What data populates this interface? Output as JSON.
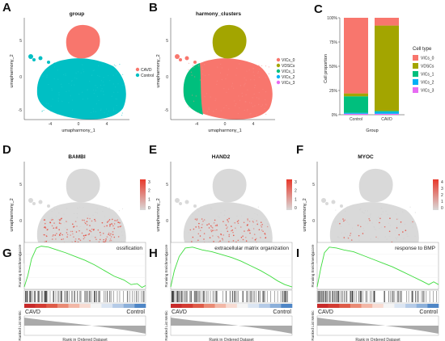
{
  "panels": {
    "A": {
      "letter": "A",
      "title": "group",
      "xlabel": "umapharmony_1",
      "ylabel": "umapharmony_2",
      "x_ticks": [
        "-4",
        "0",
        "4"
      ],
      "y_ticks": [
        "5",
        "0",
        "-5"
      ],
      "legend": [
        {
          "label": "CAVD",
          "color": "#f8766d"
        },
        {
          "label": "Control",
          "color": "#00bfc4"
        }
      ]
    },
    "B": {
      "letter": "B",
      "title": "harmony_clusters",
      "xlabel": "umapharmony_1",
      "ylabel": "umapharmony_2",
      "x_ticks": [
        "-4",
        "0",
        "4"
      ],
      "y_ticks": [
        "5",
        "0",
        "-5"
      ],
      "legend": [
        {
          "label": "VICs_0",
          "color": "#f8766d"
        },
        {
          "label": "VDSCs",
          "color": "#a3a500"
        },
        {
          "label": "VICs_1",
          "color": "#00bf7d"
        },
        {
          "label": "VICs_2",
          "color": "#00b0f6"
        },
        {
          "label": "VICs_3",
          "color": "#e76bf3"
        }
      ]
    },
    "C": {
      "letter": "C",
      "xlabel": "Group",
      "ylabel": "Cell proportion",
      "legend_title": "Cell type"
    },
    "D": {
      "letter": "D",
      "title": "BAMBI",
      "xlabel": "umapharmony_1",
      "ylabel": "umapharmony_2",
      "x_ticks": [
        "-4",
        "0",
        "4"
      ],
      "y_ticks": [
        "5",
        "0",
        "-5"
      ],
      "scale_ticks": [
        "3",
        "2",
        "1",
        "0"
      ]
    },
    "E": {
      "letter": "E",
      "title": "HAND2",
      "xlabel": "umapharmony_1",
      "ylabel": "umapharmony_2",
      "x_ticks": [
        "-4",
        "0",
        "4"
      ],
      "y_ticks": [
        "5",
        "0",
        "-5"
      ],
      "scale_ticks": [
        "3",
        "2",
        "1",
        "0"
      ]
    },
    "F": {
      "letter": "F",
      "title": "MYOC",
      "xlabel": "umapharmony_1",
      "ylabel": "umapharmony_2",
      "x_ticks": [
        "-4",
        "0",
        "4"
      ],
      "y_ticks": [
        "5",
        "0",
        "-5"
      ],
      "scale_ticks": [
        "4",
        "3",
        "2",
        "1",
        "0"
      ]
    },
    "G": {
      "letter": "G",
      "term": "ossification",
      "ylabel_top": "Running Enrichment score",
      "ylabel_bottom": "Ranked List Metric",
      "left_label": "CAVD",
      "right_label": "Control",
      "xlabel": "Rank in Ordered Dataset"
    },
    "H": {
      "letter": "H",
      "term": "extracellular matrix organization",
      "ylabel_top": "Running Enrichment score",
      "ylabel_bottom": "Ranked List Metric",
      "left_label": "CAVD",
      "right_label": "Control",
      "xlabel": "Rank in Ordered Dataset"
    },
    "I": {
      "letter": "I",
      "term": "response to BMP",
      "ylabel_top": "Running Enrichment score",
      "ylabel_bottom": "Ranked List Metric",
      "left_label": "CAVD",
      "right_label": "Control",
      "xlabel": "Rank in Ordered Dataset"
    }
  },
  "colors": {
    "cavd": "#f8766d",
    "control": "#00bfc4",
    "vdsc": "#a3a500",
    "vics1": "#00bf7d",
    "vics2": "#00b0f6",
    "vics3": "#e76bf3",
    "enrichment_line": "#3ddc3d",
    "feature_low": "#d9d9d9",
    "feature_high": "#e8392b"
  },
  "chart_data": [
    {
      "type": "bar",
      "panel": "C",
      "stacked": true,
      "categories": [
        "Control",
        "CAVD"
      ],
      "y_ticks": [
        "0%",
        "25%",
        "50%",
        "75%",
        "100%"
      ],
      "ylim": [
        0,
        100
      ],
      "xlabel": "Group",
      "ylabel": "Cell proportion",
      "legend_title": "Cell type",
      "legend_position": "right",
      "series": [
        {
          "name": "VICs_3",
          "color": "#e76bf3",
          "values": [
            1,
            1
          ]
        },
        {
          "name": "VICs_2",
          "color": "#00b0f6",
          "values": [
            1,
            2
          ]
        },
        {
          "name": "VICs_1",
          "color": "#00bf7d",
          "values": [
            17,
            1
          ]
        },
        {
          "name": "VDSCs",
          "color": "#a3a500",
          "values": [
            3,
            88
          ]
        },
        {
          "name": "VICs_0",
          "color": "#f8766d",
          "values": [
            78,
            8
          ]
        }
      ]
    }
  ]
}
